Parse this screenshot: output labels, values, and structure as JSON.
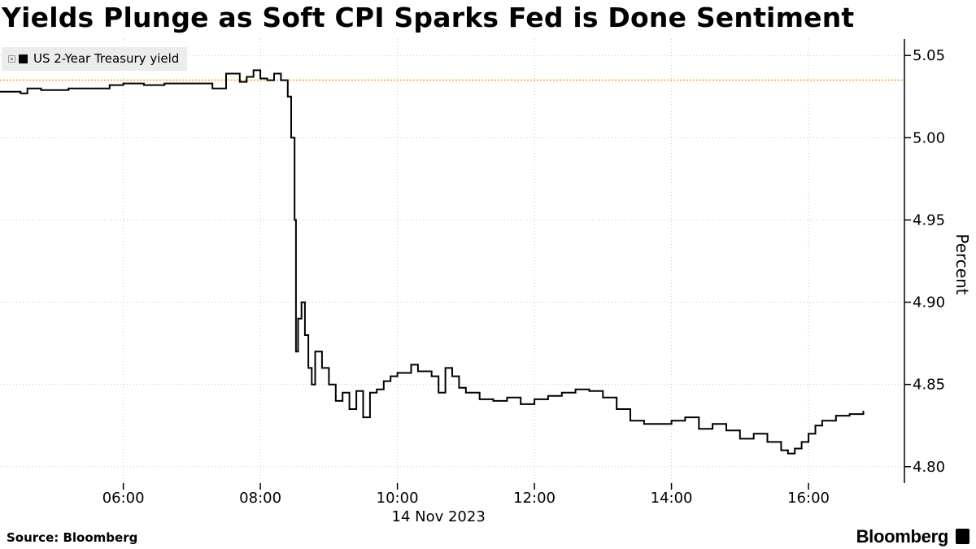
{
  "title": "Yields Plunge as Soft CPI Sparks Fed is Done Sentiment",
  "source": "Source: Bloomberg",
  "brand": "Bloomberg",
  "colors": {
    "series": "#000000",
    "reference_line": "#f5a623",
    "axis": "#000000",
    "legend_bg": "#ececec"
  },
  "chart_data": {
    "type": "line",
    "legend": [
      "US 2-Year Treasury yield"
    ],
    "ylabel": "Percent",
    "ylim": [
      4.79,
      5.06
    ],
    "ytick_values": [
      4.8,
      4.85,
      4.9,
      4.95,
      5.0,
      5.05
    ],
    "yticks": [
      "4.80",
      "4.85",
      "4.90",
      "4.95",
      "5.00",
      "5.05"
    ],
    "xlim_hours": [
      4.2,
      17.4
    ],
    "xtick_values": [
      6,
      8,
      10,
      12,
      14,
      16
    ],
    "xticks": [
      "06:00",
      "08:00",
      "10:00",
      "12:00",
      "14:00",
      "16:00"
    ],
    "x_date_label": "14 Nov 2023",
    "reference_line_y": 5.035,
    "series": [
      {
        "name": "US 2-Year Treasury yield",
        "x_hours": [
          4.2,
          4.5,
          4.6,
          4.8,
          5.0,
          5.2,
          5.5,
          5.8,
          6.0,
          6.3,
          6.6,
          7.0,
          7.3,
          7.5,
          7.7,
          7.8,
          7.9,
          8.0,
          8.1,
          8.2,
          8.3,
          8.4,
          8.45,
          8.5,
          8.52,
          8.55,
          8.6,
          8.65,
          8.7,
          8.75,
          8.8,
          8.85,
          8.9,
          9.0,
          9.1,
          9.2,
          9.3,
          9.4,
          9.5,
          9.6,
          9.7,
          9.8,
          9.9,
          10.0,
          10.2,
          10.3,
          10.5,
          10.6,
          10.7,
          10.8,
          10.9,
          11.0,
          11.2,
          11.4,
          11.6,
          11.8,
          12.0,
          12.2,
          12.4,
          12.6,
          12.8,
          13.0,
          13.2,
          13.4,
          13.6,
          13.8,
          14.0,
          14.2,
          14.4,
          14.6,
          14.8,
          15.0,
          15.2,
          15.4,
          15.6,
          15.7,
          15.8,
          15.9,
          16.0,
          16.1,
          16.2,
          16.4,
          16.6,
          16.8
        ],
        "values": [
          5.028,
          5.027,
          5.03,
          5.029,
          5.029,
          5.03,
          5.03,
          5.032,
          5.033,
          5.032,
          5.033,
          5.033,
          5.03,
          5.039,
          5.034,
          5.037,
          5.041,
          5.036,
          5.035,
          5.039,
          5.035,
          5.025,
          5.0,
          4.95,
          4.87,
          4.89,
          4.9,
          4.88,
          4.86,
          4.85,
          4.87,
          4.87,
          4.86,
          4.85,
          4.84,
          4.845,
          4.835,
          4.846,
          4.83,
          4.845,
          4.847,
          4.852,
          4.855,
          4.857,
          4.862,
          4.858,
          4.855,
          4.845,
          4.86,
          4.855,
          4.848,
          4.845,
          4.841,
          4.84,
          4.842,
          4.838,
          4.841,
          4.843,
          4.845,
          4.847,
          4.846,
          4.842,
          4.835,
          4.828,
          4.826,
          4.826,
          4.828,
          4.83,
          4.823,
          4.826,
          4.822,
          4.817,
          4.82,
          4.815,
          4.81,
          4.808,
          4.811,
          4.815,
          4.82,
          4.825,
          4.828,
          4.831,
          4.832,
          4.834
        ]
      }
    ]
  }
}
